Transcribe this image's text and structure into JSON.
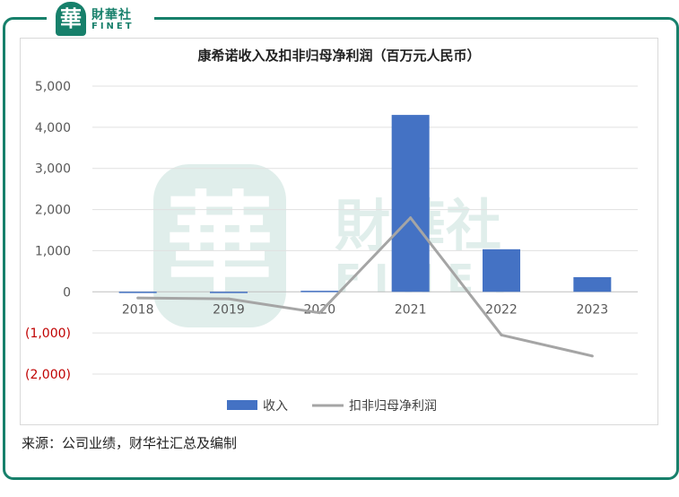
{
  "logo": {
    "cn": "財華社",
    "en": "FINET",
    "badge": "華"
  },
  "watermark": {
    "glyph": "華",
    "cn": "財華社",
    "en": "FINET"
  },
  "source": "来源：公司业绩，财华社汇总及编制",
  "colors": {
    "bar": "#4472c4",
    "line": "#a5a5a5",
    "negative_tick": "#c00000",
    "frame": "#17806b"
  },
  "chart_data": {
    "type": "bar",
    "title": "康希诺收入及扣非归母净利润（百万元人民币）",
    "categories": [
      "2018",
      "2019",
      "2020",
      "2021",
      "2022",
      "2023"
    ],
    "ylim": [
      -2000,
      5000
    ],
    "yticks": [
      -2000,
      -1000,
      0,
      1000,
      2000,
      3000,
      4000,
      5000
    ],
    "ytick_labels": [
      "(2,000)",
      "(1,000)",
      "0",
      "1,000",
      "2,000",
      "3,000",
      "4,000",
      "5,000"
    ],
    "grid": true,
    "legend_position": "bottom",
    "series": [
      {
        "name": "收入",
        "type": "bar",
        "values": [
          3,
          2,
          25,
          4300,
          1035,
          357
        ]
      },
      {
        "name": "扣非归母净利润",
        "type": "line",
        "values": [
          -150,
          -170,
          -510,
          1800,
          -1050,
          -1560
        ]
      }
    ]
  }
}
